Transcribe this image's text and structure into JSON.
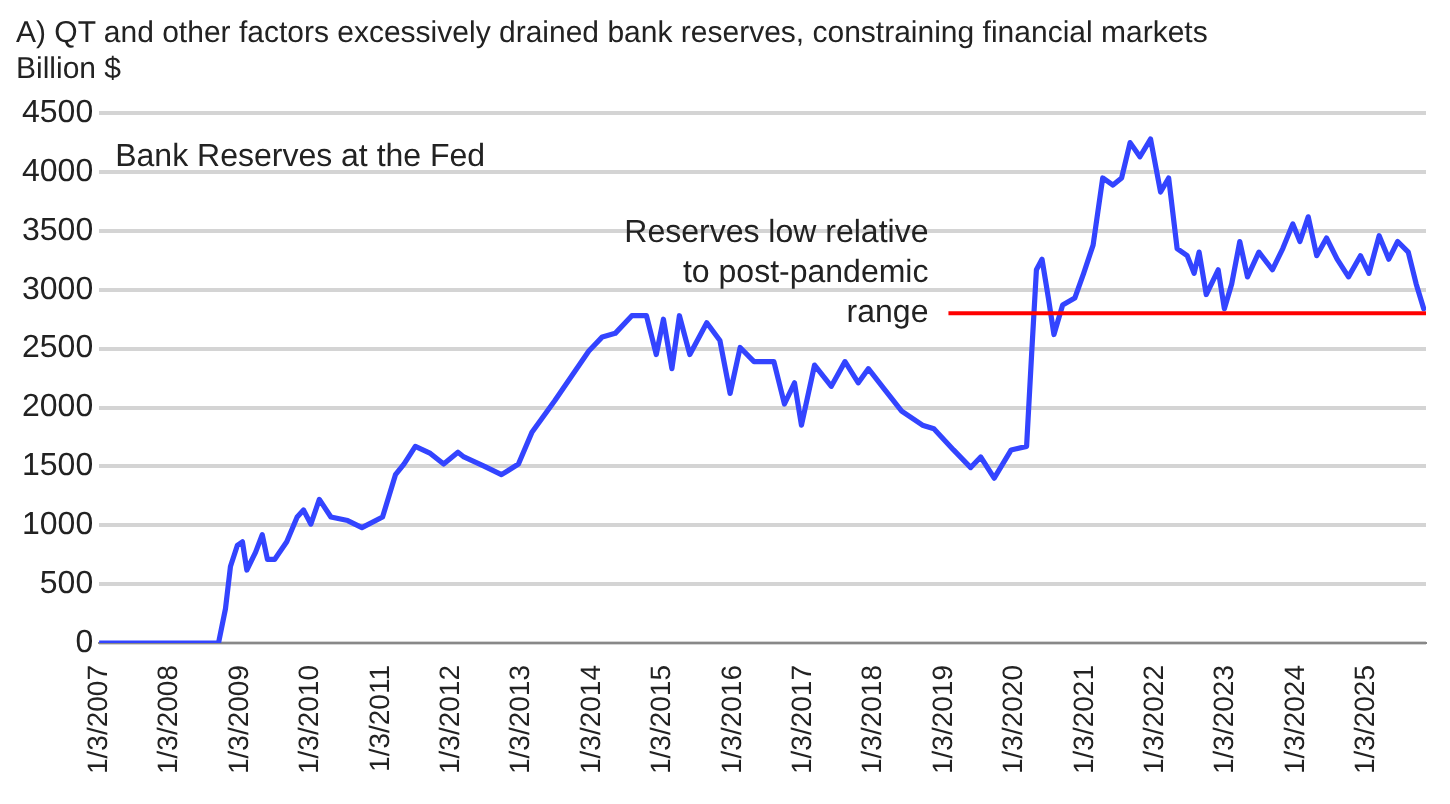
{
  "chart_data": {
    "type": "line",
    "title": "A)  QT and other factors excessively drained bank reserves, constraining financial markets",
    "ylabel": "Billion $",
    "annotations": [
      "Bank Reserves at the Fed"
    ],
    "x": [
      "2007-01-03",
      "2008-09-13",
      "2008-10-19",
      "2008-11-14",
      "2008-12-20",
      "2009-01-15",
      "2009-02-07",
      "2009-03-24",
      "2009-04-28",
      "2009-05-25",
      "2009-07-01",
      "2009-09-02",
      "2009-10-26",
      "2009-11-28",
      "2010-01-05",
      "2010-02-18",
      "2010-04-19",
      "2010-07-15",
      "2010-09-27",
      "2011-01-12",
      "2011-03-20",
      "2011-05-03",
      "2011-07-01",
      "2011-09-17",
      "2011-11-25",
      "2012-02-07",
      "2012-03-09",
      "2012-06-24",
      "2012-09-20",
      "2012-12-17",
      "2013-02-25",
      "2013-06-24",
      "2013-09-20",
      "2013-12-17",
      "2014-02-25",
      "2014-05-03",
      "2014-07-28",
      "2014-10-12",
      "2014-12-02",
      "2015-01-08",
      "2015-02-21",
      "2015-04-01",
      "2015-05-25",
      "2015-08-21",
      "2015-10-28",
      "2015-12-20",
      "2016-02-10",
      "2016-04-22",
      "2016-08-03",
      "2016-09-27",
      "2016-11-18",
      "2016-12-24",
      "2017-03-02",
      "2017-05-28",
      "2017-08-07",
      "2017-10-15",
      "2017-12-06",
      "2018-03-02",
      "2018-05-28",
      "2018-09-13",
      "2018-11-11",
      "2019-02-21",
      "2019-05-21",
      "2019-07-12",
      "2019-09-20",
      "2019-12-17",
      "2020-03-06",
      "2020-04-01",
      "2020-04-26",
      "2020-05-25",
      "2020-06-27",
      "2020-07-26",
      "2020-09-09",
      "2020-11-11",
      "2020-12-27",
      "2021-02-14",
      "2021-04-05",
      "2021-05-28",
      "2021-07-12",
      "2021-08-25",
      "2021-10-15",
      "2021-12-09",
      "2022-01-30",
      "2022-03-13",
      "2022-04-26",
      "2022-06-17",
      "2022-07-23",
      "2022-08-18",
      "2022-09-24",
      "2022-11-25",
      "2022-12-27",
      "2023-02-03",
      "2023-03-17",
      "2023-04-26",
      "2023-06-24",
      "2023-09-02",
      "2023-10-26",
      "2023-12-17",
      "2024-01-23",
      "2024-03-06",
      "2024-04-19",
      "2024-06-09",
      "2024-08-03",
      "2024-10-01",
      "2024-12-02",
      "2025-01-15",
      "2025-03-09",
      "2025-04-28",
      "2025-06-13",
      "2025-08-07",
      "2025-09-17",
      "2025-10-26"
    ],
    "series": [
      {
        "color": "#3344ff",
        "values": [
          0,
          0,
          290,
          650,
          830,
          860,
          620,
          770,
          920,
          710,
          710,
          860,
          1070,
          1130,
          1010,
          1220,
          1070,
          1040,
          980,
          1070,
          1430,
          1520,
          1670,
          1610,
          1520,
          1620,
          1580,
          1500,
          1430,
          1520,
          1790,
          2060,
          2270,
          2480,
          2600,
          2630,
          2780,
          2780,
          2450,
          2750,
          2330,
          2780,
          2450,
          2720,
          2570,
          2120,
          2510,
          2390,
          2390,
          2030,
          2210,
          1850,
          2360,
          2180,
          2390,
          2210,
          2330,
          2150,
          1970,
          1850,
          1820,
          1640,
          1490,
          1580,
          1400,
          1640,
          1670,
          2450,
          3170,
          3260,
          2930,
          2620,
          2870,
          2930,
          3140,
          3380,
          3950,
          3890,
          3950,
          4250,
          4130,
          4280,
          3830,
          3950,
          3350,
          3290,
          3140,
          3320,
          2960,
          3170,
          2840,
          3050,
          3410,
          3110,
          3320,
          3170,
          3350,
          3560,
          3410,
          3620,
          3290,
          3440,
          3260,
          3110,
          3290,
          3140,
          3460,
          3260,
          3410,
          3320,
          3050,
          2840
        ]
      }
    ],
    "xlim": [
      "2007-01-03",
      "2025-11-07"
    ],
    "xticks": [
      {
        "value": "2007-01-03",
        "label": "1/3/2007"
      },
      {
        "value": "2008-01-03",
        "label": "1/3/2008"
      },
      {
        "value": "2009-01-03",
        "label": "1/3/2009"
      },
      {
        "value": "2010-01-03",
        "label": "1/3/2010"
      },
      {
        "value": "2011-01-03",
        "label": "1/3/2011"
      },
      {
        "value": "2012-01-03",
        "label": "1/3/2012"
      },
      {
        "value": "2013-01-03",
        "label": "1/3/2013"
      },
      {
        "value": "2014-01-03",
        "label": "1/3/2014"
      },
      {
        "value": "2015-01-03",
        "label": "1/3/2015"
      },
      {
        "value": "2016-01-03",
        "label": "1/3/2016"
      },
      {
        "value": "2017-01-03",
        "label": "1/3/2017"
      },
      {
        "value": "2018-01-03",
        "label": "1/3/2018"
      },
      {
        "value": "2019-01-03",
        "label": "1/3/2019"
      },
      {
        "value": "2020-01-03",
        "label": "1/3/2020"
      },
      {
        "value": "2021-01-03",
        "label": "1/3/2021"
      },
      {
        "value": "2022-01-03",
        "label": "1/3/2022"
      },
      {
        "value": "2023-01-03",
        "label": "1/3/2023"
      },
      {
        "value": "2024-01-03",
        "label": "1/3/2024"
      },
      {
        "value": "2025-01-03",
        "label": "1/3/2025"
      }
    ],
    "ylim": [
      0,
      4500
    ],
    "yticks": [
      0,
      500,
      1000,
      1500,
      2000,
      2500,
      3000,
      3500,
      4000,
      4500
    ],
    "grid": "y",
    "marker": "none",
    "line_style": "solid",
    "ref_lines": [
      {
        "axis": "y",
        "value": 2800,
        "label": "Reserves low relative to post-pandemic range",
        "color": "#ff0000"
      }
    ]
  }
}
